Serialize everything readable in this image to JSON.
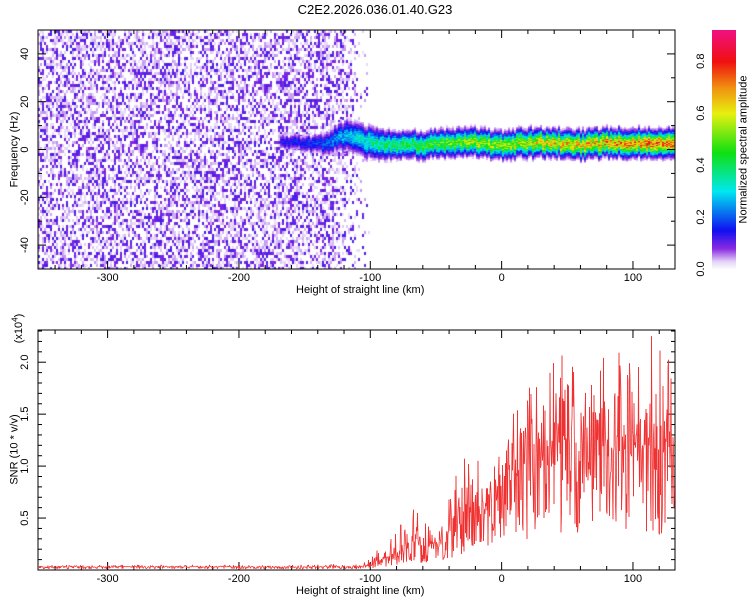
{
  "title": "C2E2.2026.036.01.40.G23",
  "chart_data": [
    {
      "type": "heatmap",
      "title": "C2E2.2026.036.01.40.G23",
      "xlabel": "Height of straight line (km)",
      "ylabel": "Frequency (Hz)",
      "xlim": [
        -353,
        132
      ],
      "ylim": [
        -50,
        50
      ],
      "xticks": [
        -300,
        -200,
        -100,
        0,
        100
      ],
      "xtick_labels": [
        "-300",
        "-200",
        "-100",
        "0",
        "100"
      ],
      "yticks": [
        -40,
        -20,
        0,
        20,
        40
      ],
      "ytick_labels": [
        "-40",
        "-20",
        "0",
        "20",
        "40"
      ],
      "colorbar": {
        "label": "Normalized spectral amplitude",
        "range": [
          0,
          0.92
        ],
        "ticks": [
          0.0,
          0.2,
          0.4,
          0.6,
          0.8
        ],
        "tick_labels": [
          "0.0",
          "0.2",
          "0.4",
          "0.6",
          "0.8"
        ],
        "stops": [
          [
            0.0,
            "#ffffff"
          ],
          [
            0.03,
            "#e4d4f8"
          ],
          [
            0.08,
            "#8a2be2"
          ],
          [
            0.15,
            "#1010f0"
          ],
          [
            0.3,
            "#00e8f0"
          ],
          [
            0.45,
            "#10e010"
          ],
          [
            0.6,
            "#e8f010"
          ],
          [
            0.7,
            "#f09010"
          ],
          [
            0.8,
            "#f01010"
          ],
          [
            0.92,
            "#f01080"
          ]
        ]
      },
      "noise_region": {
        "x_from": -353,
        "x_to": -100,
        "fade_from": -130,
        "typical_amplitude": 0.08
      },
      "ridge": {
        "x": [
          -170,
          -140,
          -120,
          -100,
          -80,
          -60,
          -40,
          -20,
          0,
          20,
          40,
          60,
          80,
          100,
          120,
          132
        ],
        "center_hz": [
          4,
          2,
          6,
          3,
          2,
          2,
          3,
          3,
          2,
          3,
          3,
          2,
          3,
          3,
          3,
          3
        ],
        "half_width_hz": [
          3,
          4,
          6,
          6,
          5,
          5,
          5,
          5,
          5,
          5,
          5,
          5,
          5,
          5,
          5,
          5
        ],
        "peak_amplitude": [
          0.15,
          0.2,
          0.3,
          0.4,
          0.45,
          0.5,
          0.55,
          0.6,
          0.6,
          0.65,
          0.7,
          0.7,
          0.75,
          0.75,
          0.8,
          0.8
        ]
      }
    },
    {
      "type": "line",
      "xlabel": "Height of straight line (km)",
      "ylabel": "SNR (10 * v/v)",
      "y_multiplier": "(x10",
      "y_multiplier_exp": "4",
      "y_multiplier_close": ")",
      "xlim": [
        -353,
        132
      ],
      "ylim": [
        0,
        2.31
      ],
      "xticks": [
        -300,
        -200,
        -100,
        0,
        100
      ],
      "xtick_labels": [
        "-300",
        "-200",
        "-100",
        "0",
        "100"
      ],
      "yticks": [
        0.5,
        1.0,
        1.5,
        2.0
      ],
      "ytick_labels": [
        "0.5",
        "1.0",
        "1.5",
        "2.0"
      ],
      "color": "#f03030",
      "series": [
        {
          "name": "SNR",
          "x": [
            -353,
            -300,
            -250,
            -200,
            -150,
            -110,
            -100,
            -90,
            -80,
            -70,
            -60,
            -50,
            -40,
            -30,
            -20,
            -10,
            0,
            10,
            20,
            30,
            40,
            50,
            60,
            70,
            80,
            90,
            100,
            110,
            120,
            132
          ],
          "mean": [
            0.03,
            0.03,
            0.03,
            0.03,
            0.03,
            0.03,
            0.05,
            0.1,
            0.15,
            0.3,
            0.2,
            0.25,
            0.35,
            0.5,
            0.6,
            0.65,
            0.8,
            0.9,
            1.0,
            1.1,
            1.2,
            1.2,
            1.2,
            1.2,
            1.1,
            1.2,
            1.1,
            1.2,
            1.1,
            1.2
          ],
          "max": [
            0.05,
            0.05,
            0.05,
            0.05,
            0.05,
            0.06,
            0.15,
            0.25,
            0.4,
            0.7,
            0.45,
            0.5,
            0.7,
            1.1,
            1.3,
            1.2,
            1.3,
            1.6,
            1.8,
            2.0,
            2.2,
            2.0,
            2.1,
            2.3,
            2.0,
            2.2,
            2.1,
            2.3,
            2.2,
            2.1
          ]
        }
      ]
    }
  ]
}
